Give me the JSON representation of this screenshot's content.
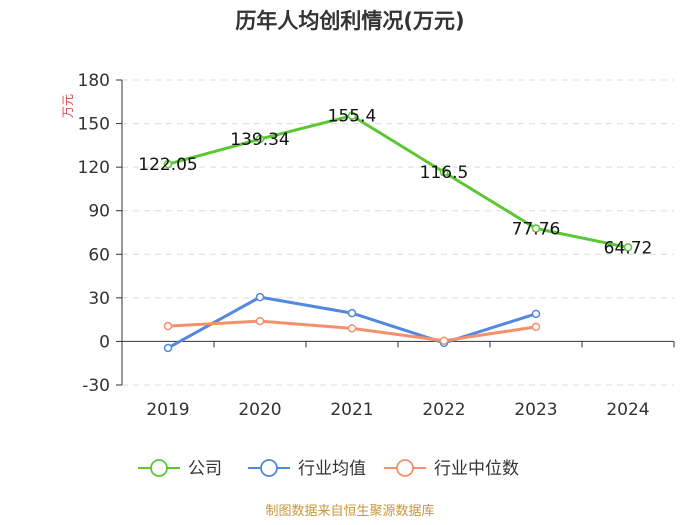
{
  "chart_data": {
    "type": "line",
    "title": "历年人均创利情况(万元)",
    "unit_label": "万元",
    "categories": [
      "2019",
      "2020",
      "2021",
      "2022",
      "2023",
      "2024"
    ],
    "ylim": [
      -30,
      180
    ],
    "yticks": [
      -30,
      0,
      30,
      60,
      90,
      120,
      150,
      180
    ],
    "grid": true,
    "legend_position": "bottom",
    "series": [
      {
        "name": "公司",
        "color": "#5ac733",
        "values": [
          122.05,
          139.34,
          155.4,
          116.5,
          77.76,
          64.72
        ],
        "labels": [
          "122.05",
          "139.34",
          "155.4",
          "116.5",
          "77.76",
          "64.72"
        ]
      },
      {
        "name": "行业均值",
        "color": "#5387e0",
        "values": [
          -4.5,
          30.5,
          19.5,
          -1.0,
          19.0,
          null
        ]
      },
      {
        "name": "行业中位数",
        "color": "#f4906a",
        "values": [
          10.5,
          14.0,
          9.0,
          0.5,
          10.0,
          null
        ]
      }
    ],
    "source": "制图数据来自恒生聚源数据库"
  }
}
